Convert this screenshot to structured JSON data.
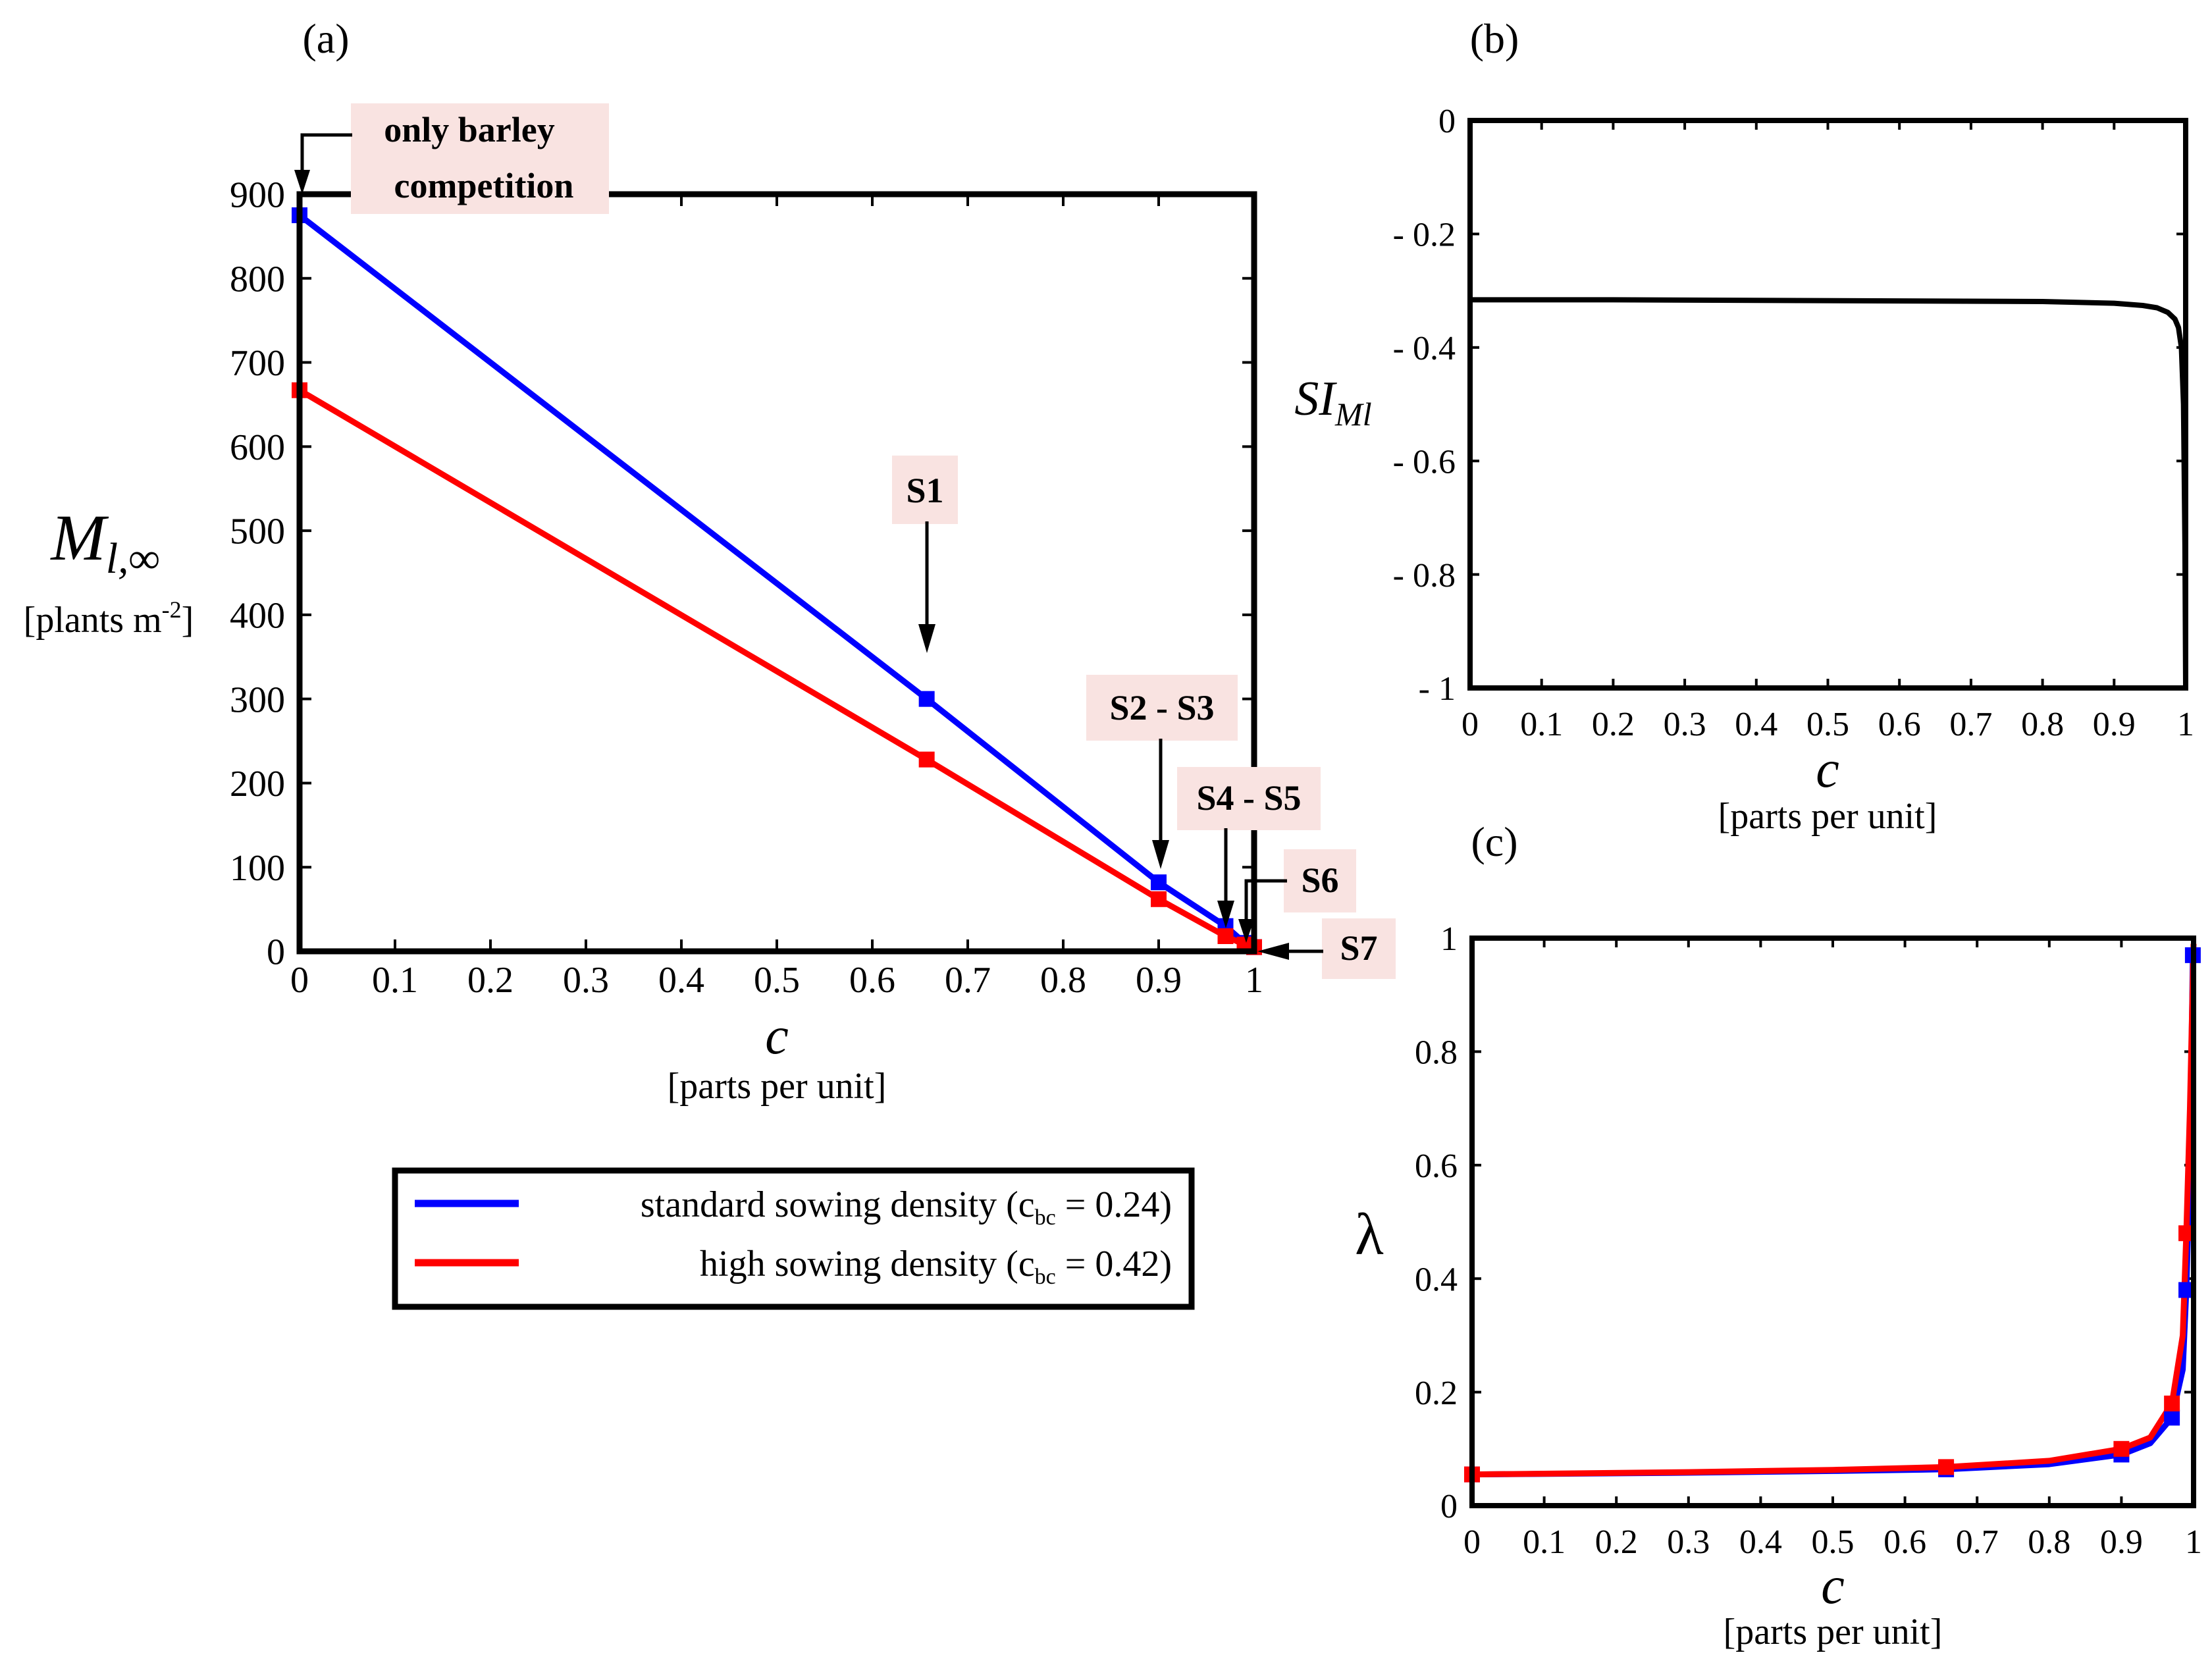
{
  "figure": {
    "legend": {
      "entries": [
        {
          "name": "standard sowing density",
          "color": "#0000ff",
          "label_main": "standard sowing density (c",
          "label_sub": "bc",
          "label_end": " = 0.24)"
        },
        {
          "name": "high sowing density",
          "color": "#ff0000",
          "label_main": "high sowing density (c",
          "label_sub": "bc",
          "label_end": " = 0.42)"
        }
      ]
    }
  },
  "chart_data": [
    {
      "id": "a",
      "type": "line",
      "panel_label": "(a)",
      "xlabel": "c",
      "xunit": "[parts per unit]",
      "ylabel_main": "M",
      "ylabel_sub": "l,∞",
      "yunit": "[plants m",
      "yunit_sup": "-2",
      "yunit_end": "]",
      "xlim": [
        0,
        1
      ],
      "ylim": [
        0,
        900
      ],
      "xticks": [
        0,
        0.1,
        0.2,
        0.3,
        0.4,
        0.5,
        0.6,
        0.7,
        0.8,
        0.9,
        1
      ],
      "xtick_labels": [
        "0",
        "0.1",
        "0.2",
        "0.3",
        "0.4",
        "0.5",
        "0.6",
        "0.7",
        "0.8",
        "0.9",
        "1"
      ],
      "yticks": [
        0,
        100,
        200,
        300,
        400,
        500,
        600,
        700,
        800,
        900
      ],
      "ytick_labels": [
        "0",
        "100",
        "200",
        "300",
        "400",
        "500",
        "600",
        "700",
        "800",
        "900"
      ],
      "series": [
        {
          "name": "standard sowing density",
          "color": "#0000ff",
          "x": [
            0,
            0.657,
            0.9,
            0.97,
            0.99,
            1.0
          ],
          "y": [
            875,
            300,
            82,
            30,
            10,
            5
          ]
        },
        {
          "name": "high sowing density",
          "color": "#ff0000",
          "x": [
            0,
            0.657,
            0.9,
            0.97,
            0.99,
            1.0
          ],
          "y": [
            667,
            228,
            62,
            18,
            8,
            5
          ]
        }
      ],
      "annotations": [
        {
          "id": "only-barley",
          "lines": [
            "only barley",
            "competition"
          ]
        },
        {
          "id": "s1",
          "lines": [
            "S1"
          ]
        },
        {
          "id": "s2-s3",
          "lines": [
            "S2 - S3"
          ]
        },
        {
          "id": "s4-s5",
          "lines": [
            "S4 - S5"
          ]
        },
        {
          "id": "s6",
          "lines": [
            "S6"
          ]
        },
        {
          "id": "s7",
          "lines": [
            "S7"
          ]
        }
      ]
    },
    {
      "id": "b",
      "type": "line",
      "panel_label": "(b)",
      "xlabel": "c",
      "xunit": "[parts per unit]",
      "ylabel_main": "SI",
      "ylabel_sub": "Ml",
      "xlim": [
        0,
        1
      ],
      "ylim": [
        -1,
        0
      ],
      "xticks": [
        0,
        0.1,
        0.2,
        0.3,
        0.4,
        0.5,
        0.6,
        0.7,
        0.8,
        0.9,
        1
      ],
      "xtick_labels": [
        "0",
        "0.1",
        "0.2",
        "0.3",
        "0.4",
        "0.5",
        "0.6",
        "0.7",
        "0.8",
        "0.9",
        "1"
      ],
      "yticks": [
        0,
        -0.2,
        -0.4,
        -0.6,
        -0.8,
        -1
      ],
      "ytick_labels": [
        "0",
        "- 0.2",
        "- 0.4",
        "- 0.6",
        "- 0.8",
        "- 1"
      ],
      "series": [
        {
          "name": "SI_Ml",
          "color": "#000000",
          "x": [
            0,
            0.2,
            0.4,
            0.6,
            0.8,
            0.9,
            0.94,
            0.96,
            0.975,
            0.985,
            0.99,
            0.994,
            0.997,
            0.999,
            1.0
          ],
          "y": [
            -0.316,
            -0.316,
            -0.317,
            -0.318,
            -0.319,
            -0.322,
            -0.326,
            -0.33,
            -0.338,
            -0.35,
            -0.365,
            -0.4,
            -0.5,
            -0.75,
            -1.0
          ]
        }
      ]
    },
    {
      "id": "c",
      "type": "line",
      "panel_label": "(c)",
      "xlabel": "c",
      "xunit": "[parts per unit]",
      "ylabel_main": "λ",
      "xlim": [
        0,
        1
      ],
      "ylim": [
        0,
        1
      ],
      "xticks": [
        0,
        0.1,
        0.2,
        0.3,
        0.4,
        0.5,
        0.6,
        0.7,
        0.8,
        0.9,
        1
      ],
      "xtick_labels": [
        "0",
        "0.1",
        "0.2",
        "0.3",
        "0.4",
        "0.5",
        "0.6",
        "0.7",
        "0.8",
        "0.9",
        "1"
      ],
      "yticks": [
        0,
        0.2,
        0.4,
        0.6,
        0.8,
        1
      ],
      "ytick_labels": [
        "0",
        "0.2",
        "0.4",
        "0.6",
        "0.8",
        "1"
      ],
      "series": [
        {
          "name": "standard sowing density",
          "color": "#0000ff",
          "x": [
            0,
            0.3,
            0.5,
            0.657,
            0.8,
            0.9,
            0.94,
            0.97,
            0.985,
            0.99,
            0.995,
            0.999
          ],
          "y": [
            0.055,
            0.058,
            0.061,
            0.064,
            0.073,
            0.09,
            0.11,
            0.155,
            0.24,
            0.38,
            0.6,
            0.97
          ],
          "marker_x": [
            0,
            0.657,
            0.9,
            0.97,
            0.99,
            0.999
          ],
          "marker_y": [
            0.055,
            0.064,
            0.09,
            0.155,
            0.38,
            0.97
          ]
        },
        {
          "name": "high sowing density",
          "color": "#ff0000",
          "x": [
            0,
            0.3,
            0.5,
            0.657,
            0.8,
            0.9,
            0.94,
            0.97,
            0.985,
            0.99,
            0.995,
            1.0
          ],
          "y": [
            0.055,
            0.059,
            0.063,
            0.068,
            0.079,
            0.1,
            0.12,
            0.18,
            0.3,
            0.48,
            0.7,
            0.99
          ],
          "marker_x": [
            0,
            0.657,
            0.9,
            0.97,
            0.99
          ],
          "marker_y": [
            0.055,
            0.068,
            0.1,
            0.18,
            0.48
          ]
        }
      ]
    }
  ]
}
